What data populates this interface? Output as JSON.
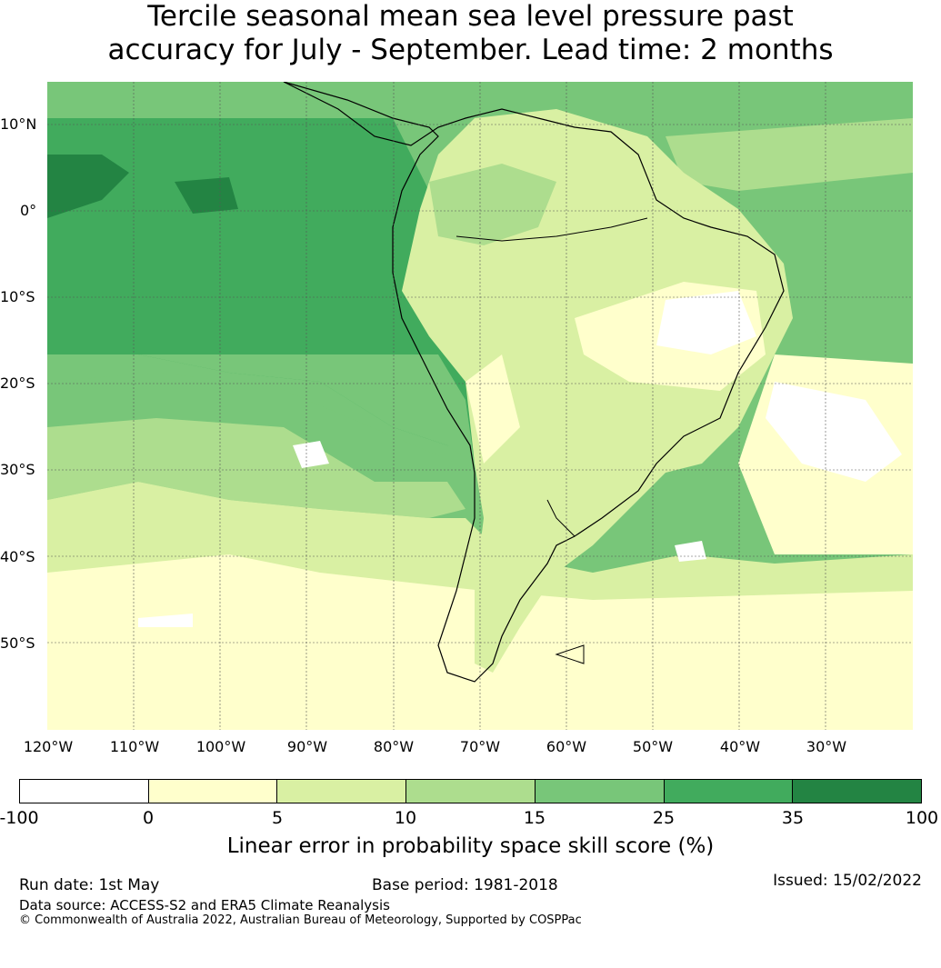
{
  "title_line1": "Tercile seasonal mean sea level pressure past",
  "title_line2": "accuracy for July - September. Lead time: 2 months",
  "lat_labels": [
    "10°N",
    "0°",
    "10°S",
    "20°S",
    "30°S",
    "40°S",
    "50°S"
  ],
  "lon_labels": [
    "120°W",
    "110°W",
    "100°W",
    "90°W",
    "80°W",
    "70°W",
    "60°W",
    "50°W",
    "40°W",
    "30°W"
  ],
  "colorbar": {
    "ticks": [
      "-100",
      "0",
      "5",
      "10",
      "15",
      "25",
      "35",
      "100"
    ],
    "colors": [
      "#ffffff",
      "#ffffcc",
      "#d9f0a3",
      "#addd8e",
      "#78c679",
      "#41ab5d",
      "#238443"
    ],
    "label": "Linear error in probability space skill score (%)"
  },
  "footer": {
    "run_date": "Run date: 1st May",
    "base_period": "Base period: 1981-2018",
    "issued": "Issued: 15/02/2022",
    "data_source": "Data source: ACCESS-S2 and ERA5 Climate Reanalysis",
    "copyright": "© Commonwealth of Australia 2022, Australian Bureau of Meteorology, Supported by COSPPac"
  }
}
